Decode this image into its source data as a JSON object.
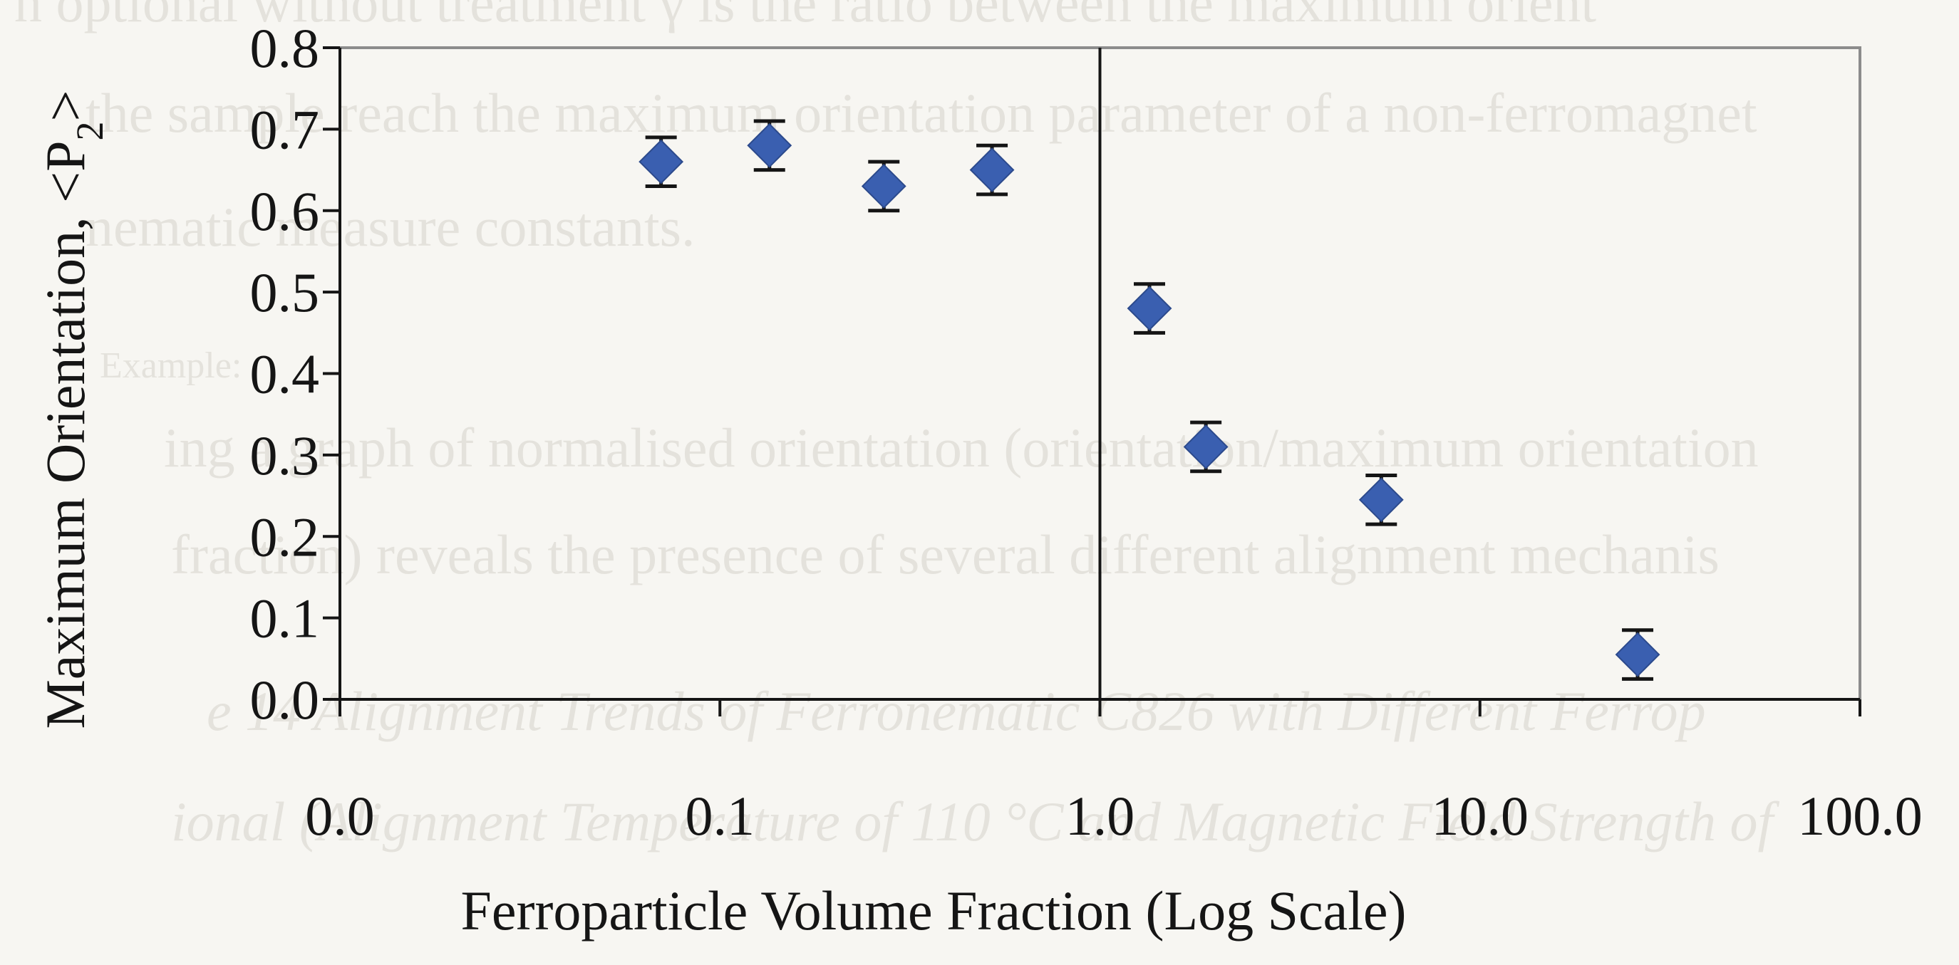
{
  "chart_data": {
    "type": "scatter",
    "title": "",
    "xlabel": "Ferroparticle Volume Fraction (Log Scale)",
    "ylabel": {
      "main": "Maximum Orientation, <P",
      "subscript": "2",
      "closing": ">"
    },
    "x_scale": "log",
    "xlim": [
      0.01,
      100
    ],
    "ylim": [
      0,
      0.8
    ],
    "x_tick_values": [
      0.01,
      0.1,
      1,
      10,
      100
    ],
    "x_tick_labels": [
      "0.0",
      "0.1",
      "1.0",
      "10.0",
      "100.0"
    ],
    "y_tick_values": [
      0,
      0.1,
      0.2,
      0.3,
      0.4,
      0.5,
      0.6,
      0.7,
      0.8
    ],
    "y_tick_labels": [
      "0.0",
      "0.1",
      "0.2",
      "0.3",
      "0.4",
      "0.5",
      "0.6",
      "0.7",
      "0.8"
    ],
    "reference_line_x": 1.0,
    "grid": false,
    "legend": "none",
    "marker": "diamond",
    "marker_color": "#3a5fb0",
    "error_bar_color": "#151515",
    "points": [
      {
        "x": 0.07,
        "y": 0.66,
        "err": 0.03
      },
      {
        "x": 0.135,
        "y": 0.68,
        "err": 0.03
      },
      {
        "x": 0.27,
        "y": 0.63,
        "err": 0.03
      },
      {
        "x": 0.52,
        "y": 0.65,
        "err": 0.03
      },
      {
        "x": 1.35,
        "y": 0.48,
        "err": 0.03
      },
      {
        "x": 1.9,
        "y": 0.31,
        "err": 0.03
      },
      {
        "x": 5.5,
        "y": 0.245,
        "err": 0.03
      },
      {
        "x": 26,
        "y": 0.055,
        "err": 0.03
      }
    ]
  },
  "background_caption": {
    "lines": [
      "n optional without treatment γ is the ratio between the maximum orient",
      "the sample reach the maximum orientation parameter of a non-ferromagnet",
      "nematic measure constants.",
      "Example:",
      "ing a graph of normalised orientation (orientation/maximum orientation",
      "fraction) reveals the presence of several different alignment mechanis",
      "e 14   Alignment Trends of Ferronematic C826 with Different Ferrop",
      "ional (Alignment Temperature of 110 °C and Magnetic Field Strength of"
    ]
  }
}
